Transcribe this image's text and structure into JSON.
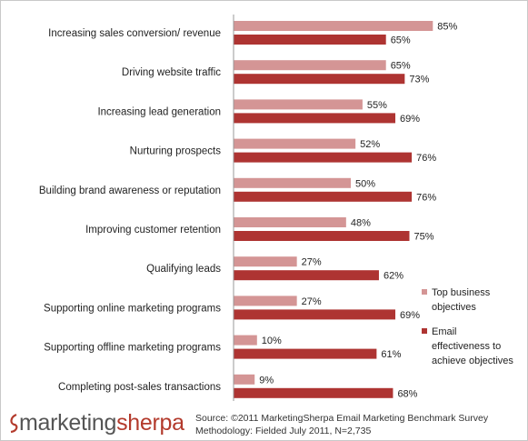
{
  "chart_data": {
    "type": "bar",
    "orientation": "horizontal",
    "categories": [
      "Increasing sales conversion/ revenue",
      "Driving website traffic",
      "Increasing lead generation",
      "Nurturing prospects",
      "Building brand awareness or reputation",
      "Improving customer retention",
      "Qualifying leads",
      "Supporting online marketing programs",
      "Supporting offline marketing programs",
      "Completing post-sales transactions"
    ],
    "series": [
      {
        "name": "Top business objectives",
        "color": "#d49595",
        "values": [
          85,
          65,
          55,
          52,
          50,
          48,
          27,
          27,
          10,
          9
        ]
      },
      {
        "name": "Email effectiveness to achieve objectives",
        "color": "#ae3432",
        "values": [
          65,
          73,
          69,
          76,
          76,
          75,
          62,
          69,
          61,
          68
        ]
      }
    ],
    "value_suffix": "%",
    "xlim": [
      0,
      100
    ],
    "legend_position": "right",
    "legend_lines": [
      [
        "Top business",
        "objectives"
      ],
      [
        "Email",
        "effectiveness to",
        "achieve objectives"
      ]
    ]
  },
  "footer": {
    "logo_part1": "marketing",
    "logo_part2": "sherpa",
    "source_line1": "Source: ©2011 MarketingSherpa Email Marketing Benchmark Survey",
    "source_line2": "Methodology: Fielded July 2011, N=2,735"
  }
}
